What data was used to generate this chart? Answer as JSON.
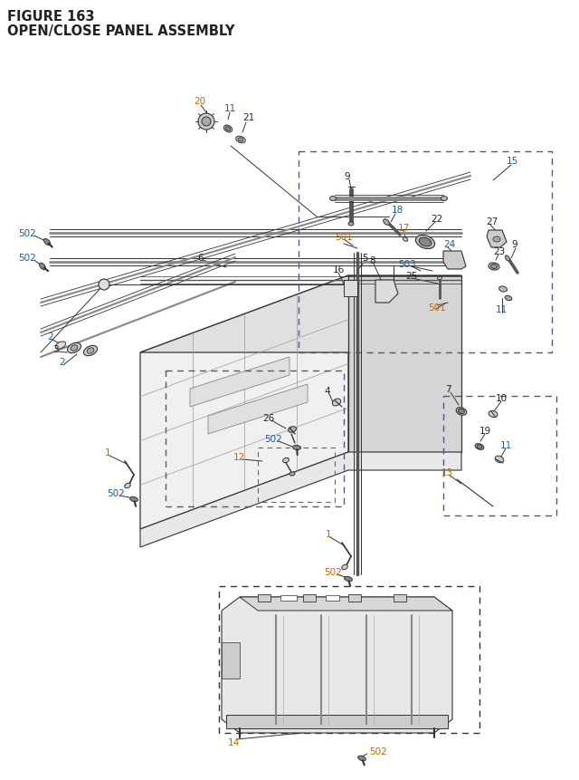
{
  "title_line1": "FIGURE 163",
  "title_line2": "OPEN/CLOSE PANEL ASSEMBLY",
  "bg_color": "#ffffff",
  "lc": "#333333",
  "blue": "#2255aa",
  "orange": "#cc6600",
  "black": "#222222",
  "gray": "#888888",
  "lgray": "#bbbbbb",
  "dgray": "#555555"
}
